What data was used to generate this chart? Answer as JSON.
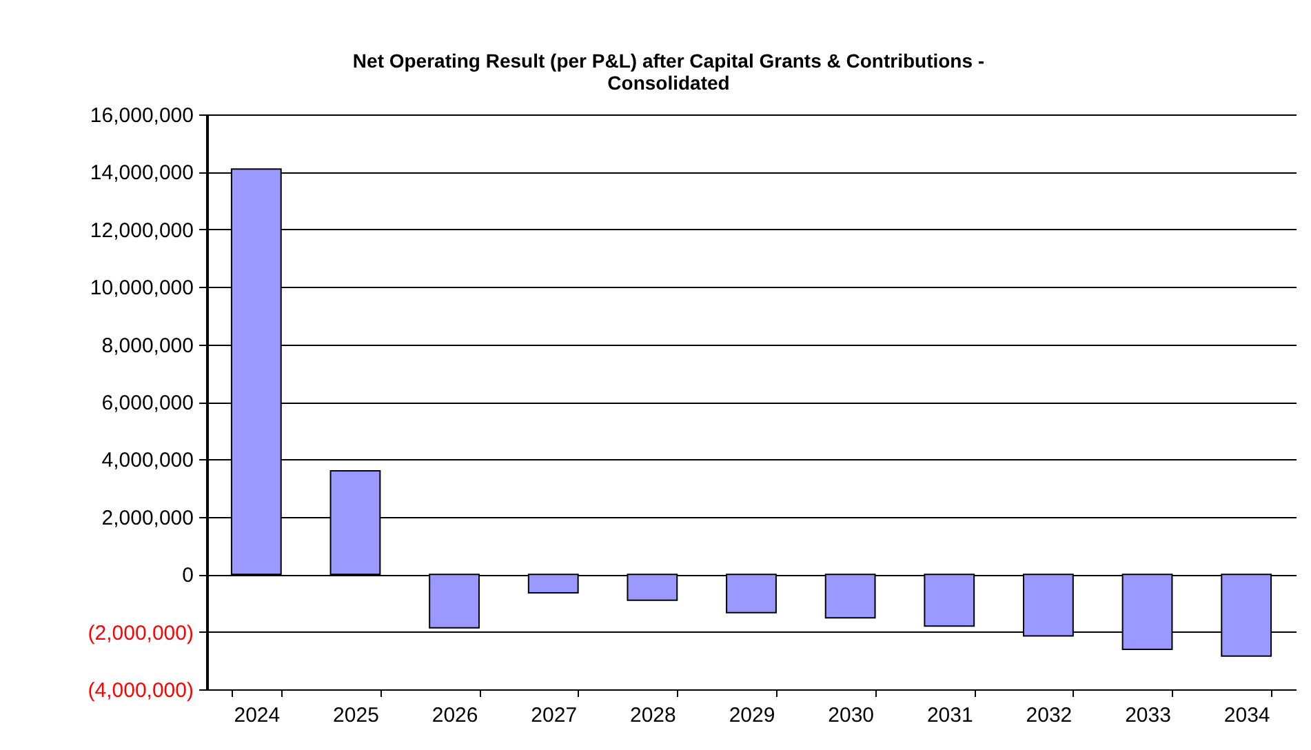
{
  "chart_data": {
    "type": "bar",
    "title": "Net Operating Result (per P&L) after Capital Grants & Contributions - Consolidated",
    "categories": [
      "2024",
      "2025",
      "2026",
      "2027",
      "2028",
      "2029",
      "2030",
      "2031",
      "2032",
      "2033",
      "2034"
    ],
    "values": [
      14100000,
      3600000,
      -1860000,
      -640000,
      -900000,
      -1330000,
      -1510000,
      -1800000,
      -2140000,
      -2610000,
      -2840000
    ],
    "color": "#9999ff",
    "ylim": [
      -4000000,
      16000000
    ],
    "yticks": [
      {
        "value": -4000000,
        "label": "(4,000,000)"
      },
      {
        "value": -2000000,
        "label": "(2,000,000)"
      },
      {
        "value": 0,
        "label": "0"
      },
      {
        "value": 2000000,
        "label": "2,000,000"
      },
      {
        "value": 4000000,
        "label": "4,000,000"
      },
      {
        "value": 6000000,
        "label": "6,000,000"
      },
      {
        "value": 8000000,
        "label": "8,000,000"
      },
      {
        "value": 10000000,
        "label": "10,000,000"
      },
      {
        "value": 12000000,
        "label": "12,000,000"
      },
      {
        "value": 14000000,
        "label": "14,000,000"
      },
      {
        "value": 16000000,
        "label": "16,000,000"
      }
    ],
    "grid": true
  }
}
